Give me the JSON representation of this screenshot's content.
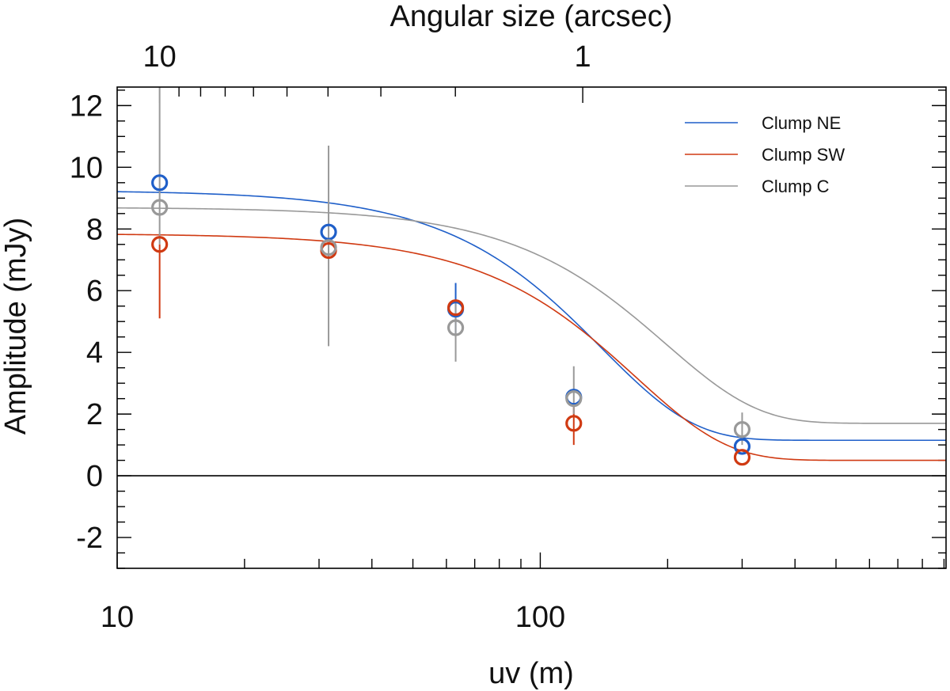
{
  "chart_data": {
    "type": "scatter",
    "title": "",
    "xlabel": "uv (m)",
    "ylabel": "Amplitude (mJy)",
    "top_axis_label": "Angular size (arcsec)",
    "x_scale": "log",
    "xlim": [
      10,
      910
    ],
    "ylim": [
      -3,
      12.6
    ],
    "x_ticklabels": [
      "10",
      "100"
    ],
    "x_tick_values": [
      10,
      100
    ],
    "y_ticklabels": [
      "-2",
      "0",
      "2",
      "4",
      "6",
      "8",
      "10",
      "12"
    ],
    "y_tick_values": [
      -2,
      0,
      2,
      4,
      6,
      8,
      10,
      12
    ],
    "top_ticklabels": [
      "10",
      "1"
    ],
    "top_tick_uv_values": [
      12.6,
      126
    ],
    "zero_line": true,
    "legend_position": "top-right",
    "series": [
      {
        "name": "Clump NE",
        "color": "#1f5fc9",
        "points": [
          {
            "x": 12.6,
            "y": 9.5,
            "yerr": null
          },
          {
            "x": 31.6,
            "y": 7.9,
            "yerr": null
          },
          {
            "x": 63.1,
            "y": 5.4,
            "yerr": [
              4.6,
              6.25
            ]
          },
          {
            "x": 120,
            "y": 2.55,
            "yerr": null
          },
          {
            "x": 300,
            "y": 0.95,
            "yerr": null
          }
        ],
        "fit": {
          "amp_inf": 1.15,
          "amp_0": 9.25,
          "scale": 0.00715
        }
      },
      {
        "name": "Clump SW",
        "color": "#d03a12",
        "points": [
          {
            "x": 12.6,
            "y": 7.5,
            "yerr": [
              5.1,
              7.5
            ]
          },
          {
            "x": 31.6,
            "y": 7.3,
            "yerr": null
          },
          {
            "x": 63.1,
            "y": 5.45,
            "yerr": null
          },
          {
            "x": 120,
            "y": 1.7,
            "yerr": [
              1.0,
              2.3
            ]
          },
          {
            "x": 300,
            "y": 0.6,
            "yerr": null
          }
        ],
        "fit": {
          "amp_inf": 0.5,
          "amp_0": 7.85,
          "scale": 0.00595
        }
      },
      {
        "name": "Clump C",
        "color": "#999999",
        "points": [
          {
            "x": 12.6,
            "y": 8.7,
            "yerr": [
              7.5,
              12.6
            ]
          },
          {
            "x": 31.6,
            "y": 7.4,
            "yerr": [
              4.2,
              10.7
            ]
          },
          {
            "x": 63.1,
            "y": 4.8,
            "yerr": [
              3.7,
              5.7
            ]
          },
          {
            "x": 120,
            "y": 2.5,
            "yerr": [
              2.0,
              3.55
            ]
          },
          {
            "x": 300,
            "y": 1.5,
            "yerr": [
              1.0,
              2.05
            ]
          }
        ],
        "fit": {
          "amp_inf": 1.7,
          "amp_0": 8.7,
          "scale": 0.00505
        }
      }
    ]
  }
}
